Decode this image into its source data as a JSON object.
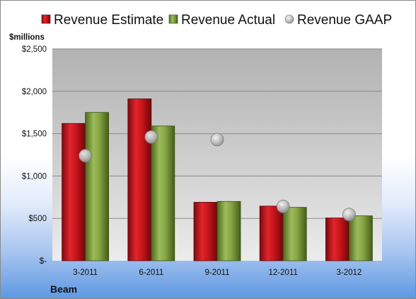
{
  "chart_data": {
    "type": "bar",
    "categories": [
      "3-2011",
      "6-2011",
      "9-2011",
      "12-2011",
      "3-2012"
    ],
    "series": [
      {
        "name": "Revenue Estimate",
        "kind": "bar",
        "color": "#c0151b",
        "values": [
          1620,
          1910,
          690,
          645,
          505
        ]
      },
      {
        "name": "Revenue Actual",
        "kind": "bar",
        "color": "#7a9a3a",
        "values": [
          1750,
          1590,
          700,
          630,
          530
        ]
      },
      {
        "name": "Revenue GAAP",
        "kind": "marker",
        "color": "#b8b8b8",
        "values": [
          1240,
          1460,
          1430,
          640,
          545
        ]
      }
    ],
    "y_unit_label": "$millions",
    "yticks": [
      {
        "value": 0,
        "label": "$-"
      },
      {
        "value": 500,
        "label": "$500"
      },
      {
        "value": 1000,
        "label": "$1,000"
      },
      {
        "value": 1500,
        "label": "$1,500"
      },
      {
        "value": 2000,
        "label": "$2,000"
      },
      {
        "value": 2500,
        "label": "$2,500"
      }
    ],
    "ylim": [
      0,
      2500
    ],
    "grid": true,
    "legend_position": "top",
    "company": "Beam"
  }
}
